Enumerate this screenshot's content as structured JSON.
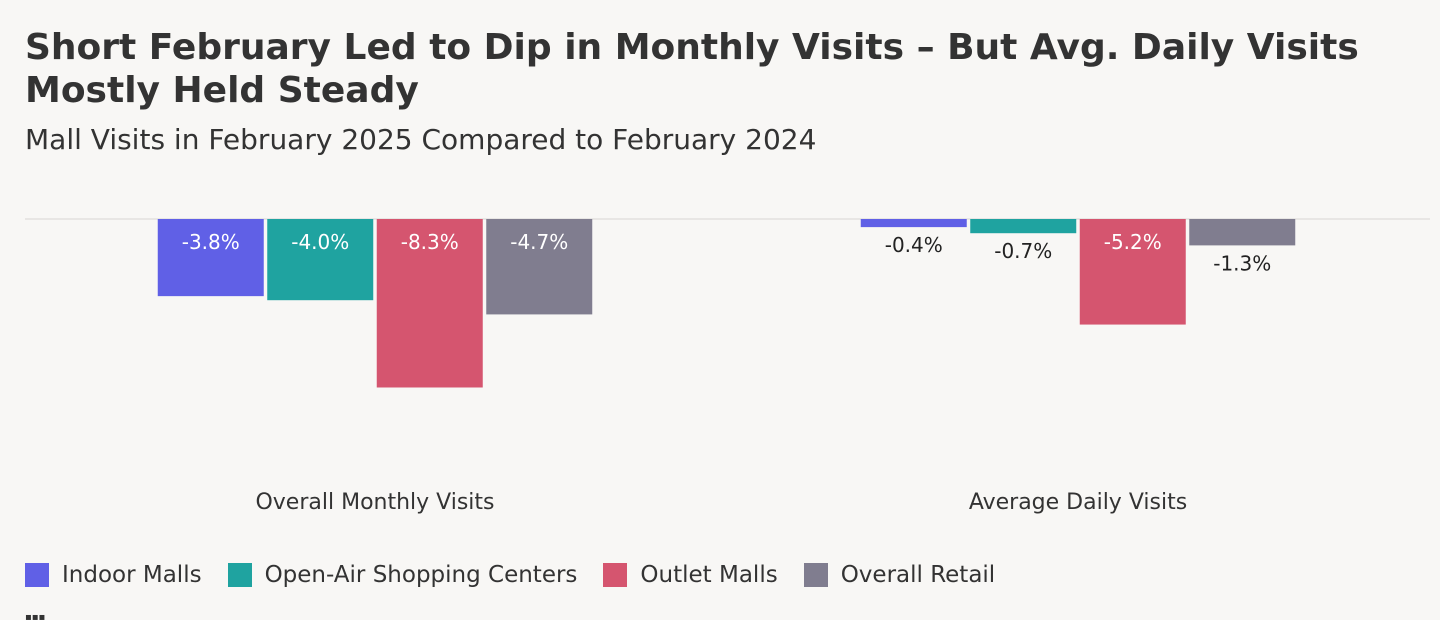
{
  "chart_data": {
    "type": "bar",
    "title": "Short February Led to Dip in Monthly Visits – But Avg. Daily Visits Mostly Held Steady",
    "subtitle": "Mall Visits in February 2025 Compared to February 2024",
    "categories": [
      "Overall Monthly Visits",
      "Average Daily Visits"
    ],
    "series": [
      {
        "name": "Indoor Malls",
        "color": "#6060e6",
        "values": [
          -3.8,
          -0.4
        ],
        "labels": [
          "-3.8%",
          "-0.4%"
        ]
      },
      {
        "name": "Open-Air Shopping Centers",
        "color": "#1fa3a0",
        "values": [
          -4.0,
          -0.7
        ],
        "labels": [
          "-4.0%",
          "-0.7%"
        ]
      },
      {
        "name": "Outlet Malls",
        "color": "#d5556f",
        "values": [
          -8.3,
          -5.2
        ],
        "labels": [
          "-8.3%",
          "-5.2%"
        ]
      },
      {
        "name": "Overall Retail",
        "color": "#807d8f",
        "values": [
          -4.7,
          -1.3
        ],
        "labels": [
          "-4.7%",
          "-1.3%"
        ]
      }
    ],
    "ylim": [
      -10,
      0
    ],
    "legend_position": "bottom-left",
    "grid": false
  }
}
